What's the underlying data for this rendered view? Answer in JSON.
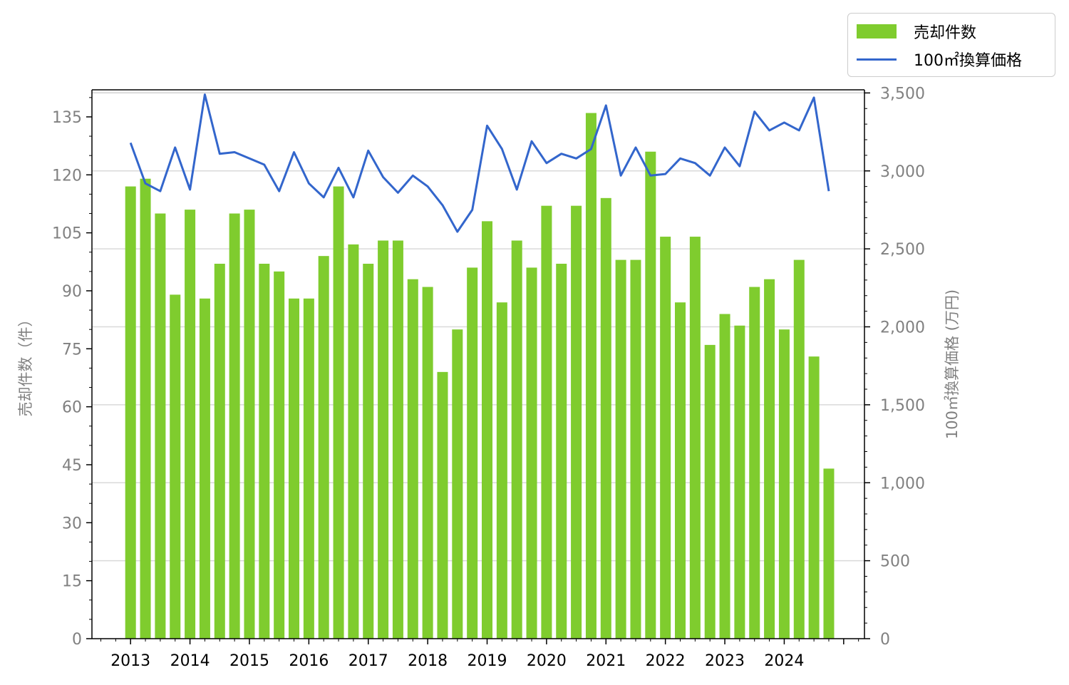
{
  "chart_data": {
    "type": "bar+line",
    "title": "",
    "xlabel": "",
    "ylabel_left": "売却件数（件）",
    "ylabel_right": "100㎡換算価格 (万円)",
    "ylim_left": [
      0,
      142
    ],
    "ylim_right": [
      0,
      3520
    ],
    "yticks_left": [
      "0",
      "15",
      "30",
      "45",
      "60",
      "75",
      "90",
      "105",
      "120",
      "135"
    ],
    "yticks_right": [
      "0",
      "500",
      "1,000",
      "1,500",
      "2,000",
      "2,500",
      "3,000",
      "3,500"
    ],
    "xticks": [
      "2013",
      "2014",
      "2015",
      "2016",
      "2017",
      "2018",
      "2019",
      "2020",
      "2021",
      "2022",
      "2023",
      "2024"
    ],
    "grid": true,
    "legend_position": "top-right",
    "colors": {
      "bar": "#7fcc2e",
      "line": "#3366cc"
    },
    "series": [
      {
        "name": "売却件数",
        "axis": "left",
        "kind": "bar",
        "values": [
          117,
          119,
          110,
          89,
          111,
          88,
          97,
          110,
          111,
          97,
          95,
          88,
          88,
          99,
          117,
          102,
          97,
          103,
          103,
          93,
          91,
          69,
          80,
          96,
          108,
          87,
          103,
          96,
          112,
          97,
          112,
          136,
          114,
          98,
          98,
          126,
          104,
          87,
          104,
          76,
          84,
          81,
          91,
          93,
          80,
          98,
          73,
          44
        ]
      },
      {
        "name": "100㎡換算価格",
        "axis": "right",
        "kind": "line",
        "values": [
          3180,
          2920,
          2870,
          3150,
          2880,
          3490,
          3110,
          3120,
          3080,
          3040,
          2870,
          3120,
          2920,
          2830,
          3020,
          2830,
          3130,
          2960,
          2860,
          2970,
          2900,
          2780,
          2610,
          2750,
          3290,
          3140,
          2880,
          3190,
          3050,
          3110,
          3080,
          3140,
          3420,
          2970,
          3150,
          2970,
          2980,
          3080,
          3050,
          2970,
          3150,
          3030,
          3380,
          3260,
          3310,
          3260,
          3470,
          2870
        ]
      }
    ]
  }
}
